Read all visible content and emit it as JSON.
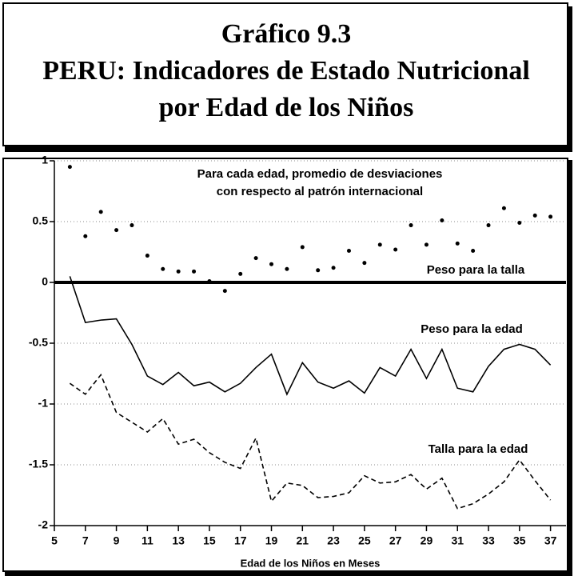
{
  "chart_data": {
    "type": "line",
    "title": [
      "Gráfico 9.3",
      "PERU: Indicadores de Estado Nutricional",
      "por Edad de los Niños"
    ],
    "xlabel": "Edad de los Niños en Meses",
    "annotations": [
      "Para cada edad, promedio de desviaciones",
      "con respecto al patrón internacional"
    ],
    "x": [
      6,
      7,
      8,
      9,
      10,
      11,
      12,
      13,
      14,
      15,
      16,
      17,
      18,
      19,
      20,
      21,
      22,
      23,
      24,
      25,
      26,
      27,
      28,
      29,
      30,
      31,
      32,
      33,
      34,
      35,
      36,
      37
    ],
    "series": [
      {
        "name": "Peso para la talla",
        "style": "dots",
        "color": "#000",
        "values": [
          0.95,
          0.38,
          0.58,
          0.43,
          0.47,
          0.22,
          0.11,
          0.09,
          0.09,
          0.01,
          -0.07,
          0.07,
          0.2,
          0.15,
          0.11,
          0.29,
          0.1,
          0.12,
          0.26,
          0.16,
          0.31,
          0.27,
          0.47,
          0.31,
          0.51,
          0.32,
          0.26,
          0.47,
          0.61,
          0.49,
          0.55,
          0.54
        ]
      },
      {
        "name": "Peso para la edad",
        "style": "solid",
        "color": "#000",
        "values": [
          0.05,
          -0.33,
          -0.31,
          -0.3,
          -0.51,
          -0.77,
          -0.84,
          -0.74,
          -0.85,
          -0.82,
          -0.9,
          -0.83,
          -0.7,
          -0.59,
          -0.92,
          -0.66,
          -0.82,
          -0.87,
          -0.81,
          -0.91,
          -0.7,
          -0.77,
          -0.55,
          -0.79,
          -0.55,
          -0.87,
          -0.9,
          -0.69,
          -0.55,
          -0.51,
          -0.55,
          -0.68
        ]
      },
      {
        "name": "Talla para la edad",
        "style": "dashed",
        "color": "#000",
        "values": [
          -0.83,
          -0.92,
          -0.76,
          -1.07,
          -1.15,
          -1.23,
          -1.12,
          -1.33,
          -1.29,
          -1.4,
          -1.48,
          -1.53,
          -1.28,
          -1.8,
          -1.65,
          -1.67,
          -1.77,
          -1.76,
          -1.73,
          -1.59,
          -1.65,
          -1.64,
          -1.58,
          -1.7,
          -1.61,
          -1.86,
          -1.82,
          -1.74,
          -1.64,
          -1.46,
          -1.63,
          -1.79
        ]
      }
    ],
    "xlim": [
      5,
      38
    ],
    "xticks": [
      5,
      7,
      9,
      11,
      13,
      15,
      17,
      19,
      21,
      23,
      25,
      27,
      29,
      31,
      33,
      35,
      37
    ],
    "ylim": [
      -2,
      1
    ],
    "yticks": [
      -2,
      -1.5,
      -1,
      -0.5,
      0,
      0.5,
      1
    ],
    "grid": true
  }
}
